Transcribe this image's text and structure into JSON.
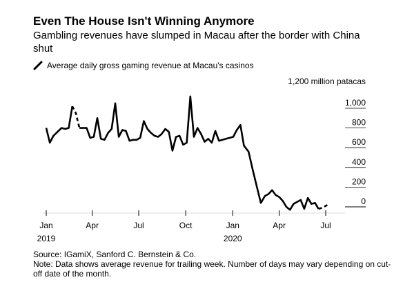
{
  "chart_data": {
    "type": "line",
    "title": "Even The House Isn't Winning Anymore",
    "subtitle": "Gambling revenues have slumped in Macau after the border with China shut",
    "legend": {
      "label": "Average daily gross gaming revenue at Macau's casinos",
      "position": "top-left"
    },
    "ylabel": "1,200 million patacas",
    "ylim": [
      0,
      1200
    ],
    "yticks": [
      "1,000",
      "800",
      "600",
      "400",
      "200",
      "0"
    ],
    "ytick_values": [
      1000,
      800,
      600,
      400,
      200,
      0
    ],
    "xticks": [
      {
        "label": "Jan",
        "year": "2019",
        "date": "2019-01-01"
      },
      {
        "label": "Apr",
        "year": "",
        "date": "2019-04-01"
      },
      {
        "label": "Jul",
        "year": "",
        "date": "2019-07-01"
      },
      {
        "label": "Oct",
        "year": "",
        "date": "2019-10-01"
      },
      {
        "label": "Jan",
        "year": "2020",
        "date": "2020-01-01"
      },
      {
        "label": "Apr",
        "year": "",
        "date": "2020-04-01"
      },
      {
        "label": "Jul",
        "year": "",
        "date": "2020-07-01"
      }
    ],
    "grid": false,
    "series": [
      {
        "name": "Average daily gross gaming revenue at Macau's casinos",
        "points": [
          [
            "2019-01-01",
            800
          ],
          [
            "2019-01-08",
            650
          ],
          [
            "2019-01-15",
            720
          ],
          [
            "2019-01-23",
            760
          ],
          [
            "2019-01-31",
            800
          ],
          [
            "2019-02-07",
            790
          ],
          [
            "2019-02-14",
            800
          ],
          [
            "2019-02-21",
            1020
          ],
          [
            "2019-02-28",
            950
          ],
          [
            "2019-03-07",
            800
          ],
          [
            "2019-03-14",
            800
          ],
          [
            "2019-03-21",
            800
          ],
          [
            "2019-03-28",
            700
          ],
          [
            "2019-04-04",
            710
          ],
          [
            "2019-04-11",
            900
          ],
          [
            "2019-04-18",
            690
          ],
          [
            "2019-04-25",
            680
          ],
          [
            "2019-05-02",
            750
          ],
          [
            "2019-05-09",
            790
          ],
          [
            "2019-05-16",
            1050
          ],
          [
            "2019-05-23",
            710
          ],
          [
            "2019-05-30",
            780
          ],
          [
            "2019-06-06",
            770
          ],
          [
            "2019-06-13",
            670
          ],
          [
            "2019-06-20",
            680
          ],
          [
            "2019-06-27",
            680
          ],
          [
            "2019-07-04",
            700
          ],
          [
            "2019-07-11",
            870
          ],
          [
            "2019-07-18",
            790
          ],
          [
            "2019-07-25",
            750
          ],
          [
            "2019-08-01",
            720
          ],
          [
            "2019-08-08",
            710
          ],
          [
            "2019-08-15",
            740
          ],
          [
            "2019-08-22",
            790
          ],
          [
            "2019-08-29",
            760
          ],
          [
            "2019-09-05",
            570
          ],
          [
            "2019-09-12",
            710
          ],
          [
            "2019-09-19",
            720
          ],
          [
            "2019-09-26",
            630
          ],
          [
            "2019-10-03",
            650
          ],
          [
            "2019-10-10",
            1120
          ],
          [
            "2019-10-17",
            710
          ],
          [
            "2019-10-24",
            800
          ],
          [
            "2019-10-31",
            740
          ],
          [
            "2019-11-07",
            660
          ],
          [
            "2019-11-14",
            690
          ],
          [
            "2019-11-21",
            650
          ],
          [
            "2019-11-28",
            770
          ],
          [
            "2019-12-05",
            670
          ],
          [
            "2019-12-12",
            680
          ],
          [
            "2019-12-19",
            690
          ],
          [
            "2019-12-26",
            700
          ],
          [
            "2020-01-02",
            710
          ],
          [
            "2020-01-09",
            780
          ],
          [
            "2020-01-16",
            830
          ],
          [
            "2020-01-23",
            620
          ],
          [
            "2020-02-01",
            560
          ],
          [
            "2020-02-09",
            380
          ],
          [
            "2020-02-17",
            210
          ],
          [
            "2020-02-25",
            40
          ],
          [
            "2020-03-04",
            110
          ],
          [
            "2020-03-11",
            130
          ],
          [
            "2020-03-18",
            170
          ],
          [
            "2020-03-25",
            120
          ],
          [
            "2020-04-01",
            100
          ],
          [
            "2020-04-08",
            60
          ],
          [
            "2020-04-15",
            0
          ],
          [
            "2020-04-22",
            -30
          ],
          [
            "2020-04-29",
            30
          ],
          [
            "2020-05-06",
            50
          ],
          [
            "2020-05-13",
            70
          ],
          [
            "2020-05-20",
            -20
          ],
          [
            "2020-05-27",
            90
          ],
          [
            "2020-06-03",
            30
          ],
          [
            "2020-06-10",
            40
          ],
          [
            "2020-06-17",
            -20
          ]
        ],
        "dashed_segments": [
          [
            [
              "2019-02-21",
              1020
            ],
            [
              "2019-02-28",
              950
            ],
            [
              "2019-03-07",
              800
            ]
          ],
          [
            [
              "2020-06-17",
              -20
            ],
            [
              "2020-06-24",
              -10
            ],
            [
              "2020-07-01",
              10
            ],
            [
              "2020-07-08",
              30
            ]
          ]
        ]
      }
    ]
  },
  "notes": {
    "source": "Source: IGamiX, Sanford C. Bernstein & Co.",
    "note": "Note: Data shows average revenue for trailing week. Number of days may vary depending on cut-off date of the month."
  }
}
